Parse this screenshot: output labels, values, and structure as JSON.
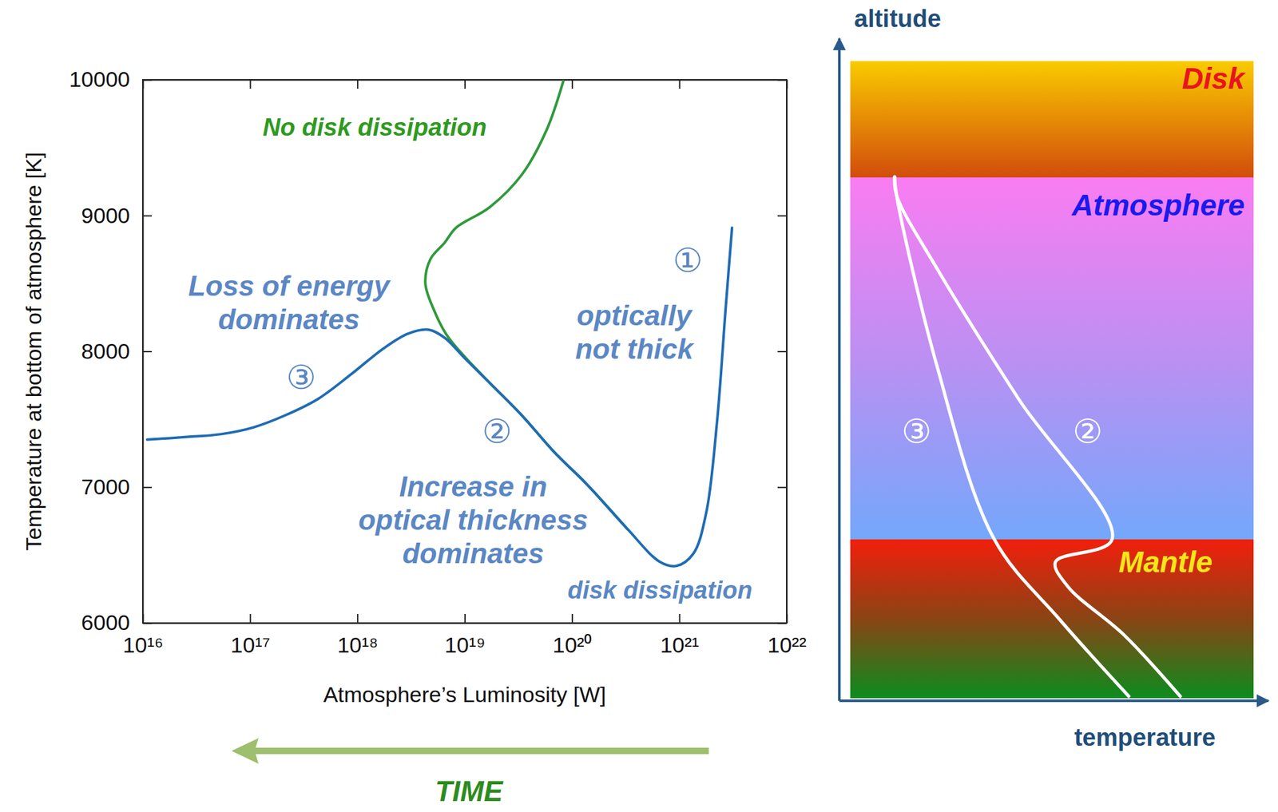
{
  "chart_data": {
    "type": "line",
    "x_label": "Atmosphere’s Luminosity [W]",
    "y_label": "Temperature at bottom of atmosphere [K]",
    "log": "x",
    "grid": false,
    "xlim": [
      1e+16,
      1e+22
    ],
    "xticks": [
      {
        "value": 1e+16,
        "label": "10¹⁶"
      },
      {
        "value": 1e+17,
        "label": "10¹⁷"
      },
      {
        "value": 1e+18,
        "label": "10¹⁸"
      },
      {
        "value": 1e+19,
        "label": "10¹⁹"
      },
      {
        "value": 1e+20,
        "label": "10²⁰"
      },
      {
        "value": 1e+21,
        "label": "10²¹"
      },
      {
        "value": 1e+22,
        "label": "10²²"
      }
    ],
    "ylim": [
      6000,
      10000
    ],
    "yticks": [
      6000,
      7000,
      8000,
      9000,
      10000
    ],
    "series": [
      {
        "color": "#2f9a3c",
        "x": [
          3.3e+20,
          1.38e+20,
          6.8e+19,
          3.4e+19,
          1.7e+19,
          1e+19,
          6.8e+18,
          5.2e+18,
          4.3e+18,
          4.8e+18,
          6.5e+18,
          8.3e+18,
          1.7e+19,
          3.4e+19,
          5.8e+19,
          8.3e+19
        ],
        "values": [
          6690,
          7020,
          7260,
          7530,
          7770,
          7960,
          8120,
          8300,
          8500,
          8680,
          8800,
          8910,
          9060,
          9300,
          9630,
          9990
        ]
      },
      {
        "color": "#1f6cb5",
        "x": [
          3.1e+21,
          2.7e+21,
          2.24e+21,
          1.78e+21,
          1.35e+21,
          9.4e+20,
          6.6e+20,
          3.3e+20,
          1.38e+20,
          6.8e+19,
          3.4e+19,
          1.7e+19,
          1e+19,
          6.5e+18,
          4.6e+18,
          2.95e+18,
          1.74e+18,
          8.7e+17,
          4.3e+17,
          2.14e+17,
          1.07e+17,
          5.3e+16,
          2.6e+16,
          1.1e+16
        ],
        "values": [
          8910,
          8310,
          7470,
          6810,
          6510,
          6420,
          6450,
          6690,
          7020,
          7260,
          7530,
          7770,
          7950,
          8100,
          8160,
          8130,
          8020,
          7830,
          7650,
          7530,
          7440,
          7390,
          7370,
          7350
        ]
      }
    ],
    "annotations": [
      {
        "text": [
          "No disk dissipation"
        ],
        "x": 1.45e+18,
        "y": 9650,
        "color": "#2e9a1e"
      },
      {
        "text": [
          "Loss of energy",
          "dominates"
        ],
        "x": 2.3e+17,
        "y": 8360,
        "color": "#5b87c4"
      },
      {
        "text": [
          "③"
        ],
        "x": 3e+17,
        "y": 7810,
        "color": "#5b87c4"
      },
      {
        "text": [
          "①"
        ],
        "x": 1.2e+21,
        "y": 8670,
        "color": "#5b87c4"
      },
      {
        "text": [
          "optically",
          "not thick"
        ],
        "x": 3.8e+20,
        "y": 8140,
        "color": "#5b87c4"
      },
      {
        "text": [
          "②"
        ],
        "x": 2e+19,
        "y": 7410,
        "color": "#5b87c4"
      },
      {
        "text": [
          "Increase in",
          "optical thickness",
          "dominates"
        ],
        "x": 1.2e+19,
        "y": 6760,
        "color": "#5b87c4"
      },
      {
        "text": [
          "disk dissipation"
        ],
        "x": 6.6e+20,
        "y": 6240,
        "color": "#5b87c4"
      }
    ],
    "time_arrow": {
      "text": "TIME",
      "color": "#2e8b1e"
    }
  },
  "diagram": {
    "axes": {
      "vertical": "altitude",
      "horizontal": "temperature"
    },
    "layers": [
      {
        "label": "Disk",
        "color": "#e8141e"
      },
      {
        "label": "Atmosphere",
        "color": "#1a1aee"
      },
      {
        "label": "Mantle",
        "color": "#f5e61a"
      }
    ],
    "profiles": [
      {
        "label": "②"
      },
      {
        "label": "③"
      }
    ]
  }
}
